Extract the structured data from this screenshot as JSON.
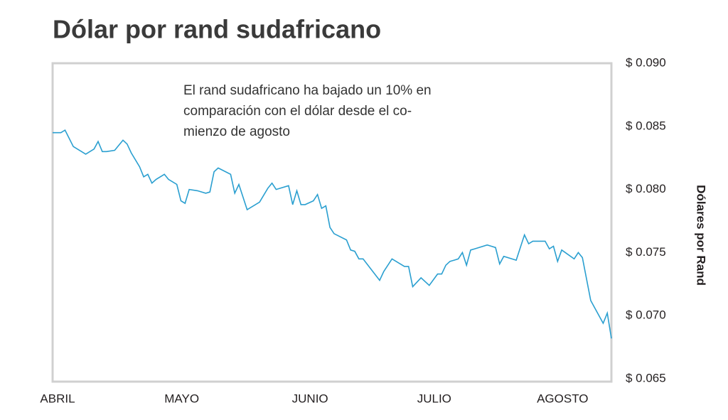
{
  "chart_data": {
    "type": "line",
    "title": "Dólar por rand sudafricano",
    "annotation": [
      "El rand sudafricano ha bajado un 10% en",
      "comparación con el dólar desde el co-",
      "mienzo de agosto"
    ],
    "y_label": "Dólares por Rand",
    "x": [
      0,
      2,
      3,
      5,
      8,
      10,
      11,
      12,
      13,
      15,
      17,
      18,
      19,
      21,
      22,
      23,
      24,
      25,
      27,
      28,
      30,
      31,
      32,
      33,
      35,
      37,
      38,
      39,
      40,
      43,
      44,
      45,
      47,
      50,
      52,
      53,
      54,
      57,
      58,
      59,
      60,
      61,
      63,
      64,
      65,
      66,
      67,
      68,
      71,
      72,
      73,
      74,
      75,
      79,
      80,
      82,
      85,
      86,
      87,
      89,
      91,
      93,
      94,
      95,
      96,
      97,
      98,
      99,
      100,
      101,
      102,
      105,
      106,
      107,
      108,
      109,
      112,
      114,
      115,
      116,
      119,
      120,
      121,
      122,
      123,
      126,
      127,
      128,
      130,
      133,
      134,
      135
    ],
    "series": [
      {
        "name": "Dólares por Rand",
        "color": "#2a9fd0",
        "values": [
          0.0845,
          0.0845,
          0.0847,
          0.0834,
          0.0828,
          0.0832,
          0.0838,
          0.083,
          0.083,
          0.0831,
          0.0839,
          0.0836,
          0.0829,
          0.0818,
          0.081,
          0.0812,
          0.0805,
          0.0808,
          0.0812,
          0.0808,
          0.0804,
          0.0791,
          0.0789,
          0.08,
          0.0799,
          0.0797,
          0.0798,
          0.0814,
          0.0817,
          0.0812,
          0.0797,
          0.0804,
          0.0784,
          0.079,
          0.0801,
          0.0805,
          0.08,
          0.0803,
          0.0788,
          0.0799,
          0.0788,
          0.0788,
          0.0791,
          0.0796,
          0.0785,
          0.0787,
          0.077,
          0.0765,
          0.076,
          0.0752,
          0.0751,
          0.0745,
          0.0745,
          0.0728,
          0.0735,
          0.0745,
          0.0739,
          0.0739,
          0.0723,
          0.073,
          0.0724,
          0.0733,
          0.0733,
          0.074,
          0.0743,
          0.0744,
          0.0745,
          0.075,
          0.074,
          0.0752,
          0.0753,
          0.0756,
          0.0755,
          0.0754,
          0.0741,
          0.0747,
          0.0744,
          0.0764,
          0.0757,
          0.0759,
          0.0759,
          0.0753,
          0.0755,
          0.0743,
          0.0752,
          0.0745,
          0.075,
          0.0746,
          0.0712,
          0.0694,
          0.0702,
          0.0682
        ]
      }
    ],
    "xlim": [
      0,
      135
    ],
    "xticks": [
      {
        "value": 0,
        "label": "ABRIL"
      },
      {
        "value": 30,
        "label": "MAYO"
      },
      {
        "value": 61,
        "label": "JUNIO"
      },
      {
        "value": 91,
        "label": "JULIO"
      },
      {
        "value": 122,
        "label": "AGOSTO"
      }
    ],
    "ylim": [
      0.065,
      0.09
    ],
    "yticks": [
      {
        "value": 0.065,
        "label": "$ 0.065"
      },
      {
        "value": 0.07,
        "label": "$ 0.070"
      },
      {
        "value": 0.075,
        "label": "$ 0.075"
      },
      {
        "value": 0.08,
        "label": "$ 0.080"
      },
      {
        "value": 0.085,
        "label": "$ 0.085"
      },
      {
        "value": 0.09,
        "label": "$ 0.090"
      }
    ],
    "grid": false
  }
}
